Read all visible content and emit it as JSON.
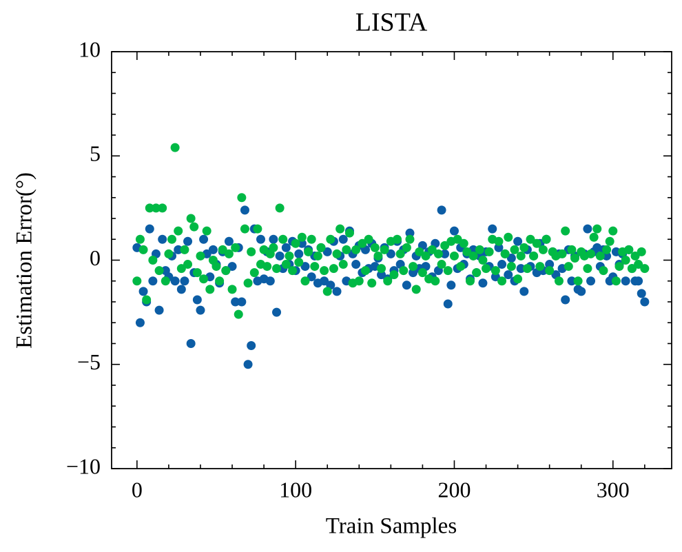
{
  "chart_data": {
    "type": "scatter",
    "title": "LISTA",
    "x_label": "Train Samples",
    "y_label": "Estimation Error(°)",
    "x": [
      0,
      2,
      4,
      6,
      8,
      10,
      12,
      14,
      16,
      18,
      20,
      22,
      24,
      26,
      28,
      30,
      32,
      34,
      36,
      38,
      40,
      42,
      44,
      46,
      48,
      50,
      52,
      54,
      56,
      58,
      60,
      62,
      64,
      66,
      68,
      70,
      72,
      74,
      76,
      78,
      80,
      82,
      84,
      86,
      88,
      90,
      92,
      94,
      96,
      98,
      100,
      102,
      104,
      106,
      108,
      110,
      112,
      114,
      116,
      118,
      120,
      122,
      124,
      126,
      128,
      130,
      132,
      134,
      136,
      138,
      140,
      142,
      144,
      146,
      148,
      150,
      152,
      154,
      156,
      158,
      160,
      162,
      164,
      166,
      168,
      170,
      172,
      174,
      176,
      178,
      180,
      182,
      184,
      186,
      188,
      190,
      192,
      194,
      196,
      198,
      200,
      202,
      204,
      206,
      208,
      210,
      212,
      214,
      216,
      218,
      220,
      222,
      224,
      226,
      228,
      230,
      232,
      234,
      236,
      238,
      240,
      242,
      244,
      246,
      248,
      250,
      252,
      254,
      256,
      258,
      260,
      262,
      264,
      266,
      268,
      270,
      272,
      274,
      276,
      278,
      280,
      282,
      284,
      286,
      288,
      290,
      292,
      294,
      296,
      298,
      300,
      302,
      304,
      306,
      308,
      310,
      312,
      314,
      316,
      318,
      320
    ],
    "series": [
      {
        "color": "#0C5DA5",
        "values": [
          0.6,
          -3.0,
          -1.5,
          -2.0,
          1.5,
          -1.0,
          0.3,
          -2.4,
          1.0,
          -0.5,
          -0.8,
          0.2,
          -1.0,
          0.5,
          -1.4,
          -1.0,
          0.9,
          -4.0,
          -0.6,
          -1.9,
          -2.4,
          1.0,
          0.3,
          -0.8,
          0.5,
          -0.2,
          -1.1,
          0.4,
          -0.5,
          0.9,
          -0.3,
          -2.0,
          0.6,
          -2.0,
          2.4,
          -5.0,
          -4.1,
          1.5,
          -1.0,
          1.0,
          -0.9,
          0.4,
          -1.0,
          1.0,
          -2.5,
          0.2,
          -0.4,
          0.6,
          -0.2,
          0.9,
          -0.5,
          0.3,
          0.8,
          -0.3,
          0.5,
          -0.8,
          0.2,
          -1.1,
          0.6,
          -1.0,
          0.4,
          -1.2,
          0.9,
          -1.5,
          0.2,
          1.0,
          -1.0,
          1.4,
          0.3,
          -0.2,
          0.7,
          -0.6,
          0.5,
          -0.4,
          0.8,
          -0.3,
          0.1,
          -0.7,
          0.6,
          -0.9,
          0.3,
          -0.5,
          0.9,
          -0.2,
          0.5,
          -1.2,
          1.3,
          -0.6,
          0.2,
          -0.4,
          0.7,
          -0.3,
          0.4,
          -0.8,
          0.8,
          -0.5,
          2.4,
          0.3,
          -2.1,
          -1.2,
          1.4,
          -0.4,
          0.6,
          -0.2,
          0.3,
          -0.9,
          0.5,
          -0.6,
          0.2,
          -1.1,
          0.4,
          -0.3,
          1.5,
          -0.8,
          0.6,
          -0.2,
          0.3,
          -0.7,
          0.1,
          -1.0,
          0.9,
          -0.4,
          -1.5,
          0.5,
          -0.3,
          0.2,
          -0.6,
          0.8,
          -0.5,
          1.0,
          -0.2,
          0.4,
          -0.7,
          0.3,
          -0.4,
          -1.9,
          0.5,
          -1.0,
          0.2,
          -1.4,
          -1.5,
          0.3,
          1.5,
          -1.0,
          0.4,
          0.6,
          -0.3,
          0.5,
          0.2,
          -1.0,
          -0.8,
          0.4,
          -0.2,
          0.3,
          -1.0,
          0.5,
          -0.4,
          -1.0,
          -1.0,
          -1.6,
          -2.0
        ]
      },
      {
        "color": "#00B945",
        "values": [
          -1.0,
          1.0,
          0.5,
          -1.9,
          2.5,
          0.0,
          2.5,
          -0.5,
          2.5,
          -1.0,
          0.3,
          1.0,
          5.4,
          1.4,
          -0.4,
          0.5,
          -0.2,
          2.0,
          1.6,
          -0.6,
          0.2,
          -0.9,
          1.4,
          -1.4,
          0.0,
          -0.3,
          -1.0,
          0.5,
          -0.5,
          0.3,
          -1.4,
          0.6,
          -2.6,
          3.0,
          1.5,
          -1.1,
          0.4,
          -0.6,
          1.5,
          -0.2,
          0.5,
          -0.3,
          0.3,
          0.6,
          -0.4,
          2.5,
          1.0,
          -0.2,
          0.2,
          -0.5,
          0.8,
          -0.1,
          1.1,
          -1.0,
          0.4,
          1.0,
          -0.3,
          0.2,
          0.6,
          -0.5,
          -1.5,
          1.0,
          -0.4,
          0.3,
          1.5,
          -0.2,
          0.5,
          1.3,
          -1.1,
          0.5,
          -1.0,
          0.8,
          -0.5,
          1.0,
          -1.1,
          0.6,
          0.2,
          -0.4,
          0.5,
          -1.0,
          0.9,
          -0.7,
          1.0,
          0.3,
          -0.5,
          0.6,
          1.0,
          -0.3,
          -1.4,
          0.4,
          -0.6,
          0.2,
          -0.9,
          0.5,
          -1.0,
          0.3,
          -0.2,
          0.7,
          -0.5,
          0.9,
          0.2,
          1.0,
          -0.3,
          0.8,
          0.4,
          -1.0,
          0.2,
          -0.6,
          0.5,
          0.0,
          -0.4,
          0.4,
          1.0,
          -0.5,
          0.9,
          -1.0,
          0.3,
          1.1,
          -0.3,
          0.5,
          -0.9,
          0.2,
          0.6,
          -0.4,
          1.0,
          0.2,
          0.8,
          -0.3,
          0.5,
          1.0,
          -0.5,
          0.4,
          0.2,
          -1.0,
          0.3,
          1.4,
          -0.3,
          0.5,
          0.1,
          -1.0,
          0.4,
          0.2,
          -0.4,
          0.3,
          1.1,
          1.5,
          0.2,
          -0.5,
          0.5,
          0.9,
          1.4,
          -1.0,
          -0.3,
          0.4,
          0.0,
          0.5,
          -0.4,
          0.2,
          -0.2,
          0.4,
          -0.4
        ]
      }
    ],
    "xlim": [
      -16,
      337
    ],
    "ylim": [
      -10,
      10
    ],
    "xticks": [
      0,
      100,
      200,
      300
    ],
    "yticks": [
      {
        "value": -10,
        "label": "−10"
      },
      {
        "value": -5,
        "label": "−5"
      },
      0,
      5,
      10
    ],
    "xminorticks": [
      20,
      40,
      60,
      80,
      120,
      140,
      160,
      180,
      220,
      240,
      260,
      280,
      320
    ],
    "yminorticks": [
      -9,
      -8,
      -7,
      -6,
      -4,
      -3,
      -2,
      -1,
      1,
      2,
      3,
      4,
      6,
      7,
      8,
      9
    ],
    "grid": false
  }
}
